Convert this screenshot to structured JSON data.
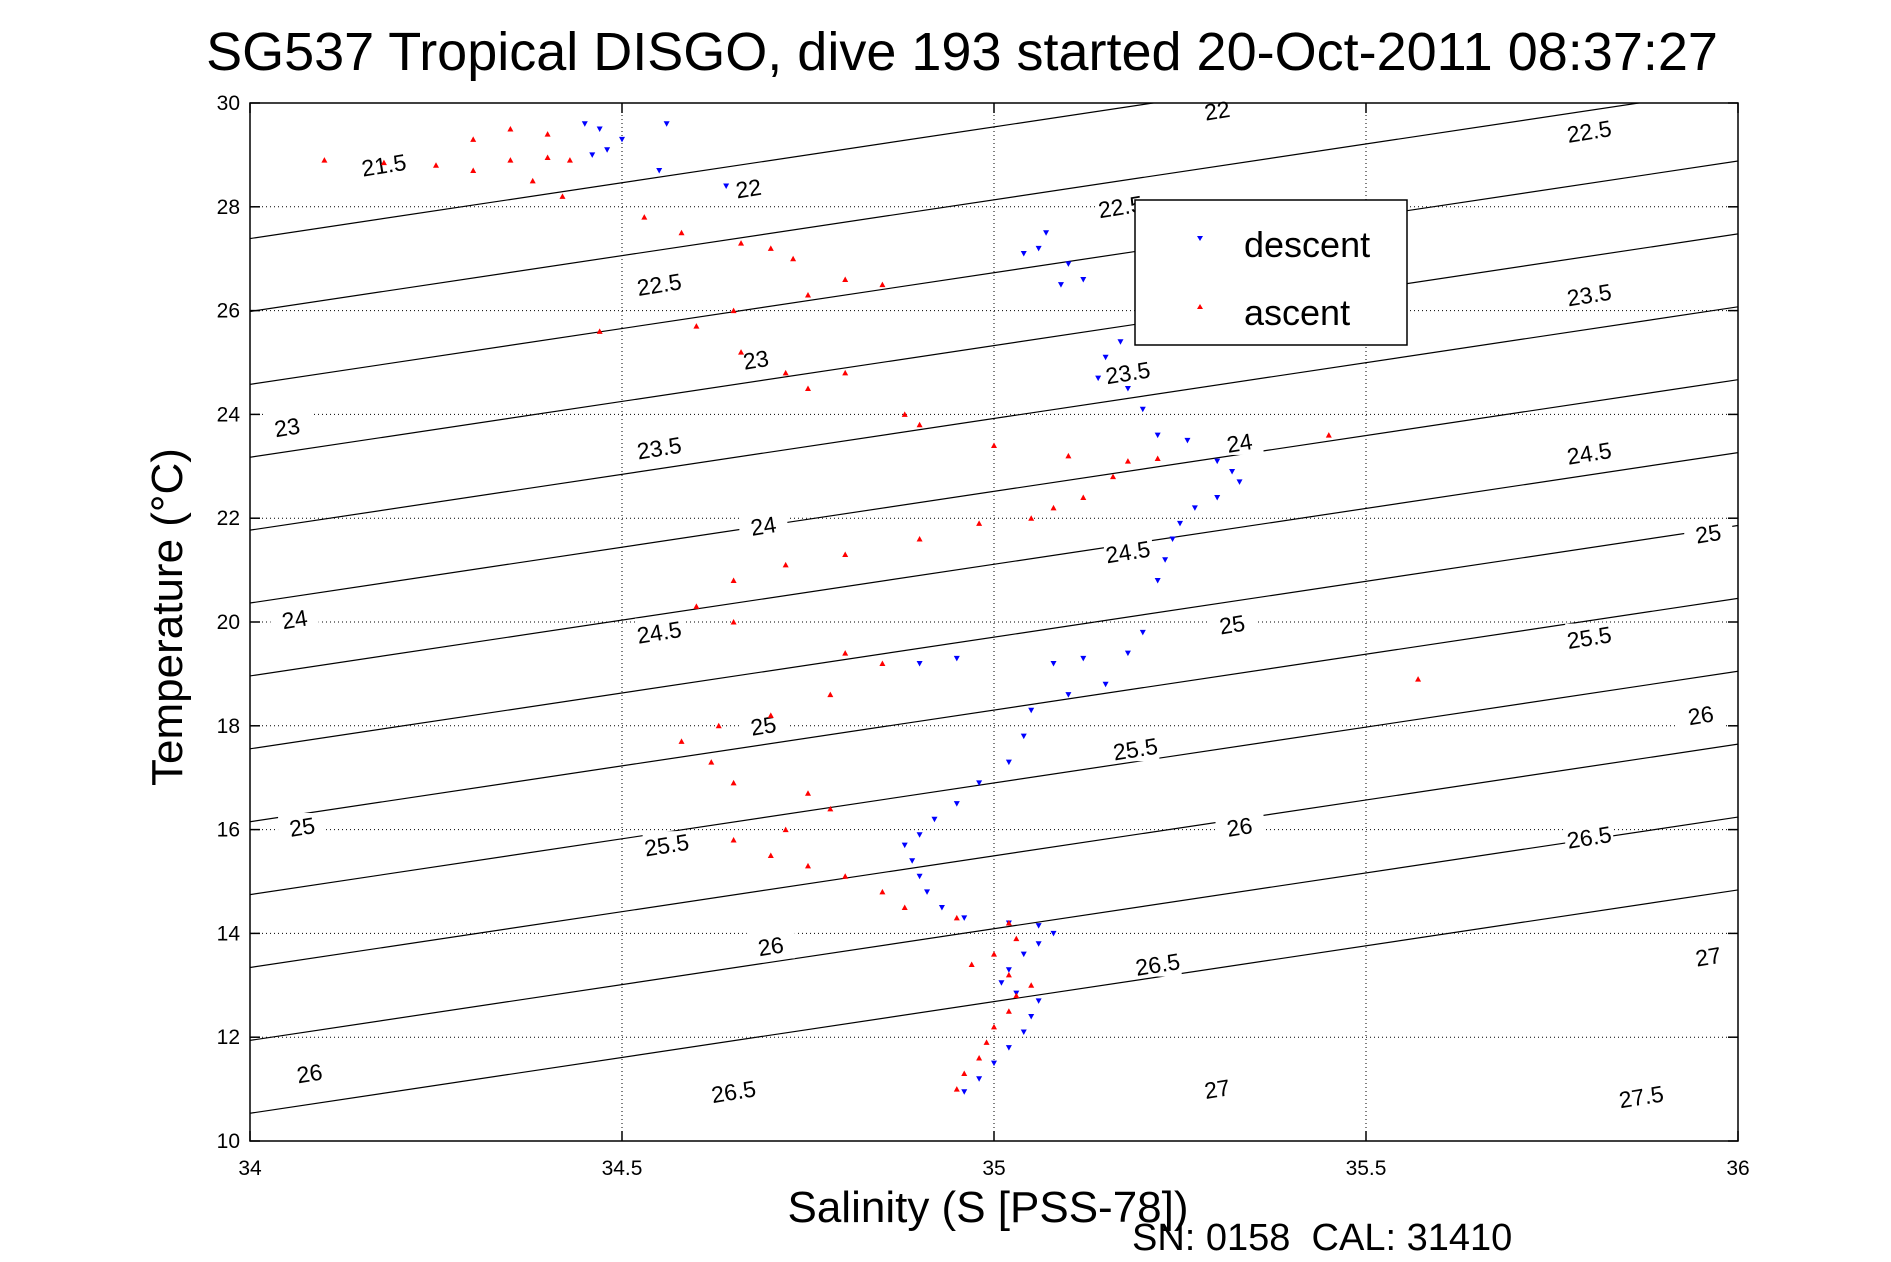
{
  "chart_data": {
    "type": "scatter",
    "title": "SG537 Tropical DISGO, dive 193 started 20-Oct-2011 08:37:27",
    "xlabel": "Salinity (S [PSS-78])",
    "ylabel": "Temperature (°C)",
    "xlim": [
      34,
      36
    ],
    "ylim": [
      10,
      30
    ],
    "xticks": [
      "34",
      "34.5",
      "35",
      "35.5",
      "36"
    ],
    "yticks": [
      "10",
      "12",
      "14",
      "16",
      "18",
      "20",
      "22",
      "24",
      "26",
      "28",
      "30"
    ],
    "grid": true,
    "legend_position": "top-right",
    "footer": "SN: 0158  CAL: 31410",
    "density_contours": {
      "levels": [
        21.5,
        22,
        22.5,
        23,
        23.5,
        24,
        24.5,
        25,
        25.5,
        26,
        26.5,
        27,
        27.5
      ],
      "labels": [
        {
          "text": "21.5",
          "s": 34.18,
          "t": 28.8
        },
        {
          "text": "22",
          "s": 35.3,
          "t": 29.85
        },
        {
          "text": "22",
          "s": 34.67,
          "t": 28.35
        },
        {
          "text": "22.5",
          "s": 35.8,
          "t": 29.45
        },
        {
          "text": "22.5",
          "s": 35.17,
          "t": 28.0
        },
        {
          "text": "22.5",
          "s": 34.55,
          "t": 26.5
        },
        {
          "text": "23",
          "s": 34.05,
          "t": 23.75
        },
        {
          "text": "23",
          "s": 34.68,
          "t": 25.05
        },
        {
          "text": "23.5",
          "s": 35.8,
          "t": 26.3
        },
        {
          "text": "23.5",
          "s": 35.18,
          "t": 24.8
        },
        {
          "text": "23.5",
          "s": 34.55,
          "t": 23.35
        },
        {
          "text": "24",
          "s": 34.06,
          "t": 20.05
        },
        {
          "text": "24",
          "s": 34.69,
          "t": 21.85
        },
        {
          "text": "24",
          "s": 35.33,
          "t": 23.45
        },
        {
          "text": "24.5",
          "s": 35.8,
          "t": 23.25
        },
        {
          "text": "24.5",
          "s": 35.18,
          "t": 21.35
        },
        {
          "text": "24.5",
          "s": 34.55,
          "t": 19.8
        },
        {
          "text": "25",
          "s": 35.96,
          "t": 21.7
        },
        {
          "text": "25",
          "s": 35.32,
          "t": 19.95
        },
        {
          "text": "25",
          "s": 34.69,
          "t": 18.0
        },
        {
          "text": "25",
          "s": 34.07,
          "t": 16.05
        },
        {
          "text": "25.5",
          "s": 35.8,
          "t": 19.7
        },
        {
          "text": "25.5",
          "s": 35.19,
          "t": 17.55
        },
        {
          "text": "25.5",
          "s": 34.56,
          "t": 15.7
        },
        {
          "text": "26",
          "s": 35.95,
          "t": 18.2
        },
        {
          "text": "26",
          "s": 35.33,
          "t": 16.05
        },
        {
          "text": "26",
          "s": 34.7,
          "t": 13.75
        },
        {
          "text": "26",
          "s": 34.08,
          "t": 11.3
        },
        {
          "text": "26.5",
          "s": 35.8,
          "t": 15.85
        },
        {
          "text": "26.5",
          "s": 35.22,
          "t": 13.4
        },
        {
          "text": "26.5",
          "s": 34.65,
          "t": 10.95
        },
        {
          "text": "27",
          "s": 35.96,
          "t": 13.55
        },
        {
          "text": "27",
          "s": 35.3,
          "t": 11.0
        },
        {
          "text": "27.5",
          "s": 35.87,
          "t": 10.85
        }
      ]
    },
    "series": [
      {
        "name": "descent",
        "color": "#0000ff",
        "marker": "triangle-down",
        "points": [
          [
            34.45,
            29.6
          ],
          [
            34.47,
            29.5
          ],
          [
            34.5,
            29.3
          ],
          [
            34.48,
            29.1
          ],
          [
            34.46,
            29.0
          ],
          [
            34.56,
            29.6
          ],
          [
            34.55,
            28.7
          ],
          [
            34.64,
            28.4
          ],
          [
            35.07,
            27.5
          ],
          [
            35.06,
            27.2
          ],
          [
            35.04,
            27.1
          ],
          [
            35.1,
            26.9
          ],
          [
            35.09,
            26.5
          ],
          [
            35.12,
            26.6
          ],
          [
            35.17,
            25.4
          ],
          [
            35.15,
            25.1
          ],
          [
            35.14,
            24.7
          ],
          [
            35.18,
            24.5
          ],
          [
            35.2,
            24.1
          ],
          [
            35.22,
            23.6
          ],
          [
            35.26,
            23.5
          ],
          [
            35.3,
            23.1
          ],
          [
            35.32,
            22.9
          ],
          [
            35.33,
            22.7
          ],
          [
            35.3,
            22.4
          ],
          [
            35.27,
            22.2
          ],
          [
            35.25,
            21.9
          ],
          [
            35.24,
            21.6
          ],
          [
            35.23,
            21.2
          ],
          [
            35.22,
            20.8
          ],
          [
            35.2,
            19.8
          ],
          [
            35.18,
            19.4
          ],
          [
            35.12,
            19.3
          ],
          [
            35.08,
            19.2
          ],
          [
            34.95,
            19.3
          ],
          [
            34.9,
            19.2
          ],
          [
            35.15,
            18.8
          ],
          [
            35.1,
            18.6
          ],
          [
            35.05,
            18.3
          ],
          [
            35.04,
            17.8
          ],
          [
            35.02,
            17.3
          ],
          [
            34.98,
            16.9
          ],
          [
            34.95,
            16.5
          ],
          [
            34.92,
            16.2
          ],
          [
            34.9,
            15.9
          ],
          [
            34.88,
            15.7
          ],
          [
            34.89,
            15.4
          ],
          [
            34.9,
            15.1
          ],
          [
            34.91,
            14.8
          ],
          [
            34.93,
            14.5
          ],
          [
            34.96,
            14.3
          ],
          [
            35.02,
            14.2
          ],
          [
            35.06,
            14.15
          ],
          [
            35.08,
            14.0
          ],
          [
            35.06,
            13.8
          ],
          [
            35.04,
            13.6
          ],
          [
            35.02,
            13.3
          ],
          [
            35.01,
            13.05
          ],
          [
            35.03,
            12.85
          ],
          [
            35.06,
            12.7
          ],
          [
            35.05,
            12.4
          ],
          [
            35.04,
            12.1
          ],
          [
            35.02,
            11.8
          ],
          [
            35.0,
            11.5
          ],
          [
            34.98,
            11.2
          ],
          [
            34.96,
            10.95
          ]
        ]
      },
      {
        "name": "ascent",
        "color": "#ff0000",
        "marker": "triangle-up",
        "points": [
          [
            34.1,
            28.9
          ],
          [
            34.18,
            28.85
          ],
          [
            34.25,
            28.8
          ],
          [
            34.3,
            28.7
          ],
          [
            34.35,
            28.9
          ],
          [
            34.4,
            28.95
          ],
          [
            34.43,
            28.9
          ],
          [
            34.3,
            29.3
          ],
          [
            34.35,
            29.5
          ],
          [
            34.4,
            29.4
          ],
          [
            34.38,
            28.5
          ],
          [
            34.42,
            28.2
          ],
          [
            34.53,
            27.8
          ],
          [
            34.58,
            27.5
          ],
          [
            34.66,
            27.3
          ],
          [
            34.7,
            27.2
          ],
          [
            34.73,
            27.0
          ],
          [
            34.8,
            26.6
          ],
          [
            34.85,
            26.5
          ],
          [
            34.75,
            26.3
          ],
          [
            34.65,
            26.0
          ],
          [
            34.6,
            25.7
          ],
          [
            34.47,
            25.6
          ],
          [
            34.66,
            25.2
          ],
          [
            34.72,
            24.8
          ],
          [
            34.8,
            24.8
          ],
          [
            34.75,
            24.5
          ],
          [
            34.88,
            24.0
          ],
          [
            34.9,
            23.8
          ],
          [
            35.0,
            23.4
          ],
          [
            35.1,
            23.2
          ],
          [
            35.18,
            23.1
          ],
          [
            35.22,
            23.15
          ],
          [
            35.16,
            22.8
          ],
          [
            35.12,
            22.4
          ],
          [
            35.08,
            22.2
          ],
          [
            35.05,
            22.0
          ],
          [
            34.98,
            21.9
          ],
          [
            34.9,
            21.6
          ],
          [
            34.8,
            21.3
          ],
          [
            34.72,
            21.1
          ],
          [
            34.65,
            20.8
          ],
          [
            34.6,
            20.3
          ],
          [
            34.65,
            20.0
          ],
          [
            34.8,
            19.4
          ],
          [
            34.85,
            19.2
          ],
          [
            34.78,
            18.6
          ],
          [
            34.7,
            18.2
          ],
          [
            34.63,
            18.0
          ],
          [
            34.58,
            17.7
          ],
          [
            34.62,
            17.3
          ],
          [
            34.65,
            16.9
          ],
          [
            34.75,
            16.7
          ],
          [
            34.78,
            16.4
          ],
          [
            34.72,
            16.0
          ],
          [
            34.65,
            15.8
          ],
          [
            34.7,
            15.5
          ],
          [
            34.75,
            15.3
          ],
          [
            34.8,
            15.1
          ],
          [
            34.85,
            14.8
          ],
          [
            34.88,
            14.5
          ],
          [
            34.95,
            14.3
          ],
          [
            35.02,
            14.2
          ],
          [
            35.03,
            13.9
          ],
          [
            35.0,
            13.6
          ],
          [
            34.97,
            13.4
          ],
          [
            35.02,
            13.2
          ],
          [
            35.05,
            13.0
          ],
          [
            35.03,
            12.8
          ],
          [
            35.02,
            12.5
          ],
          [
            35.0,
            12.2
          ],
          [
            34.99,
            11.9
          ],
          [
            34.98,
            11.6
          ],
          [
            34.96,
            11.3
          ],
          [
            34.95,
            11.0
          ],
          [
            35.45,
            23.6
          ],
          [
            35.57,
            18.9
          ]
        ]
      }
    ]
  }
}
